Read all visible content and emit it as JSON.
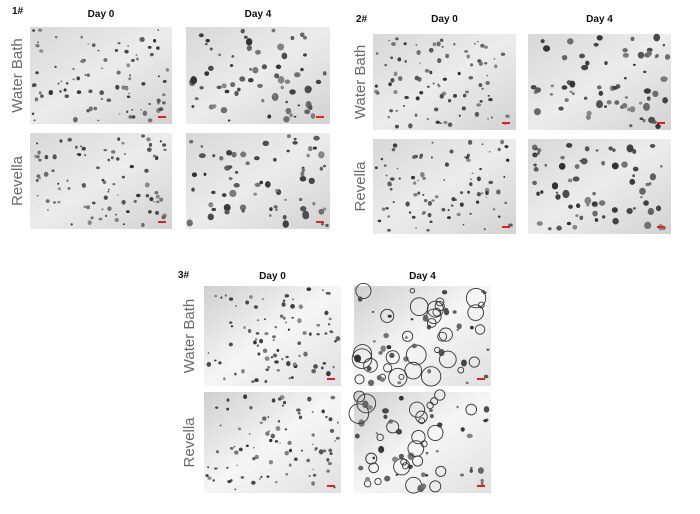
{
  "panels": [
    {
      "label": "1#",
      "columns": [
        "Day 0",
        "Day 4"
      ],
      "rows": [
        "Water Bath",
        "Revella"
      ]
    },
    {
      "label": "2#",
      "columns": [
        "Day 0",
        "Day 4"
      ],
      "rows": [
        "Water Bath",
        "Revella"
      ]
    },
    {
      "label": "3#",
      "columns": [
        "Day 0",
        "Day 4"
      ],
      "rows": [
        "Water Bath",
        "Revella"
      ]
    }
  ]
}
